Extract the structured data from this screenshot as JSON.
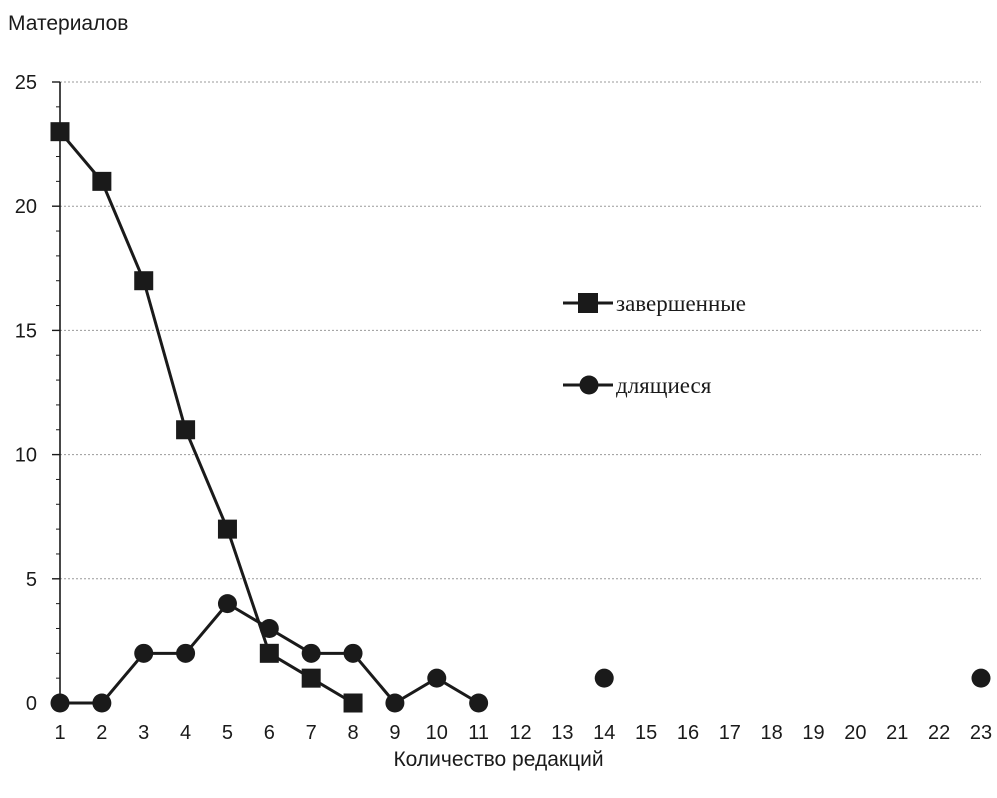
{
  "chart_data": {
    "type": "line",
    "ylabel": "Материалов",
    "xlabel": "Количество редакций",
    "x": [
      1,
      2,
      3,
      4,
      5,
      6,
      7,
      8,
      9,
      10,
      11,
      12,
      13,
      14,
      15,
      16,
      17,
      18,
      19,
      20,
      21,
      22,
      23
    ],
    "xticks": [
      "1",
      "2",
      "3",
      "4",
      "5",
      "6",
      "7",
      "8",
      "9",
      "10",
      "11",
      "12",
      "13",
      "14",
      "15",
      "16",
      "17",
      "18",
      "19",
      "20",
      "21",
      "22",
      "23"
    ],
    "ylim": [
      0,
      25
    ],
    "yticks": [
      0,
      5,
      10,
      15,
      20,
      25
    ],
    "grid": "horizontal dotted",
    "legend_position": "right",
    "series": [
      {
        "name": "завершенные",
        "marker": "square",
        "color": "#1a1a1a",
        "points": [
          [
            1,
            23
          ],
          [
            2,
            21
          ],
          [
            3,
            17
          ],
          [
            4,
            11
          ],
          [
            5,
            7
          ],
          [
            6,
            2
          ],
          [
            7,
            1
          ],
          [
            8,
            0
          ]
        ]
      },
      {
        "name": "длящиеся",
        "marker": "circle",
        "color": "#1a1a1a",
        "points": [
          [
            1,
            0
          ],
          [
            2,
            0
          ],
          [
            3,
            2
          ],
          [
            4,
            2
          ],
          [
            5,
            4
          ],
          [
            6,
            3
          ],
          [
            7,
            2
          ],
          [
            8,
            2
          ],
          [
            9,
            0
          ],
          [
            10,
            1
          ],
          [
            11,
            0
          ]
        ],
        "isolated_points": [
          [
            14,
            1
          ],
          [
            23,
            1
          ]
        ]
      }
    ]
  }
}
